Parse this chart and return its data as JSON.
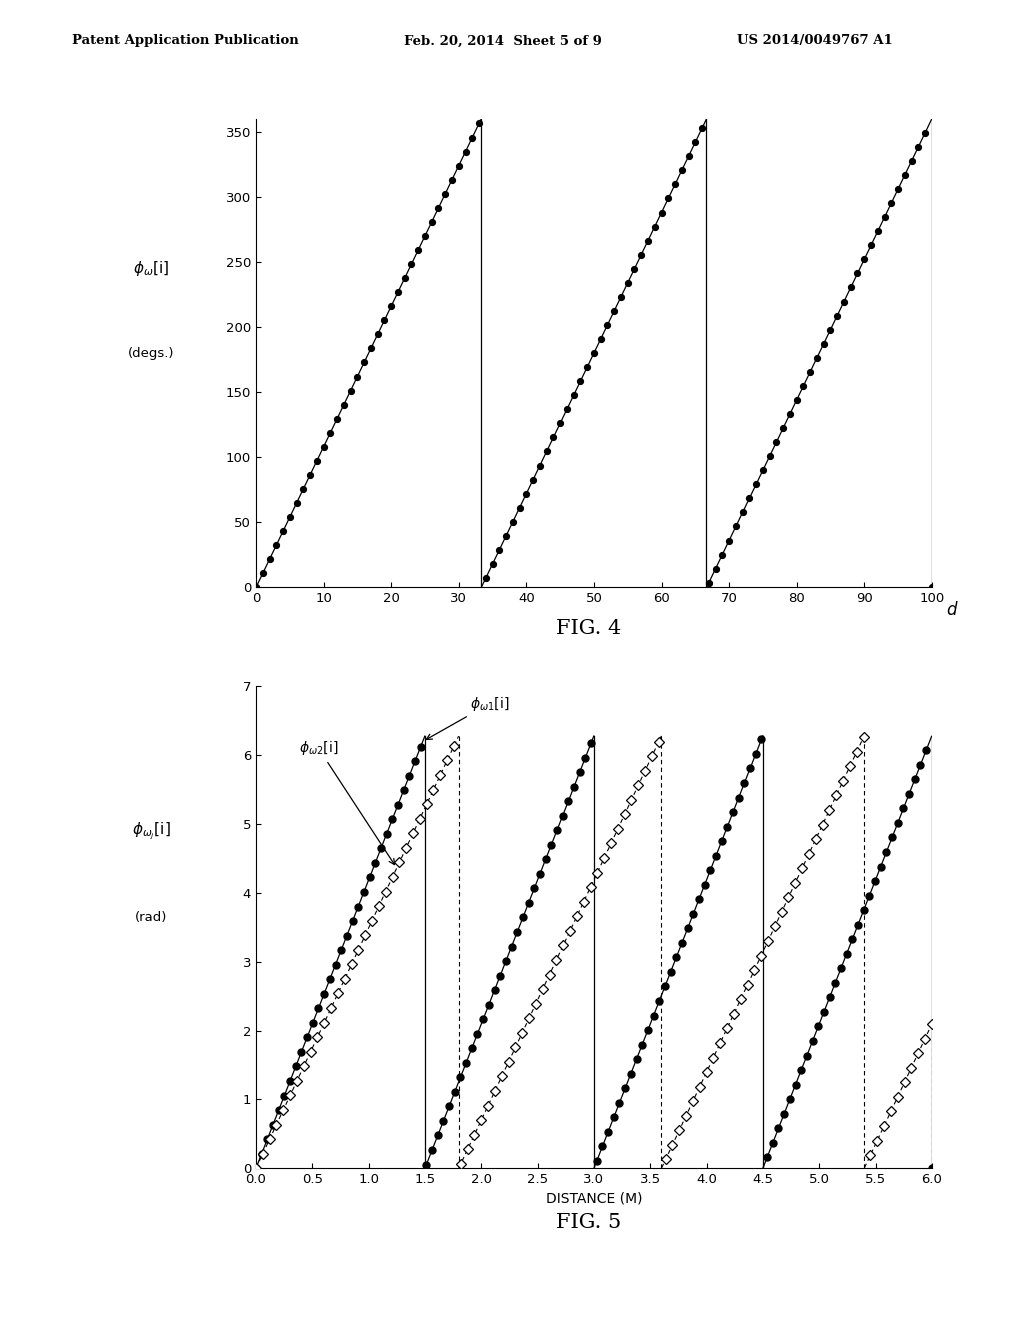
{
  "header_left": "Patent Application Publication",
  "header_mid": "Feb. 20, 2014  Sheet 5 of 9",
  "header_right": "US 2014/0049767 A1",
  "fig4": {
    "title": "FIG. 4",
    "xlim": [
      0,
      100
    ],
    "ylim": [
      0,
      360
    ],
    "xticks": [
      0,
      10,
      20,
      30,
      40,
      50,
      60,
      70,
      80,
      90,
      100
    ],
    "yticks": [
      0,
      50,
      100,
      150,
      200,
      250,
      300,
      350
    ],
    "period": 33.333,
    "n_dots": 101
  },
  "fig5": {
    "title": "FIG. 5",
    "xlim": [
      0,
      6.0
    ],
    "ylim": [
      0,
      7
    ],
    "xticks": [
      0,
      0.5,
      1.0,
      1.5,
      2.0,
      2.5,
      3.0,
      3.5,
      4.0,
      4.5,
      5.0,
      5.5,
      6.0
    ],
    "yticks": [
      0,
      1,
      2,
      3,
      4,
      5,
      6,
      7
    ],
    "omega1_period": 1.5,
    "omega2_period": 1.8,
    "n_dots_omega1": 120,
    "n_dots_omega2": 100,
    "label_omega1": "$\\phi_{\\omega 1}$[i]",
    "label_omega2": "$\\phi_{\\omega 2}$[i]"
  },
  "background_color": "#ffffff"
}
